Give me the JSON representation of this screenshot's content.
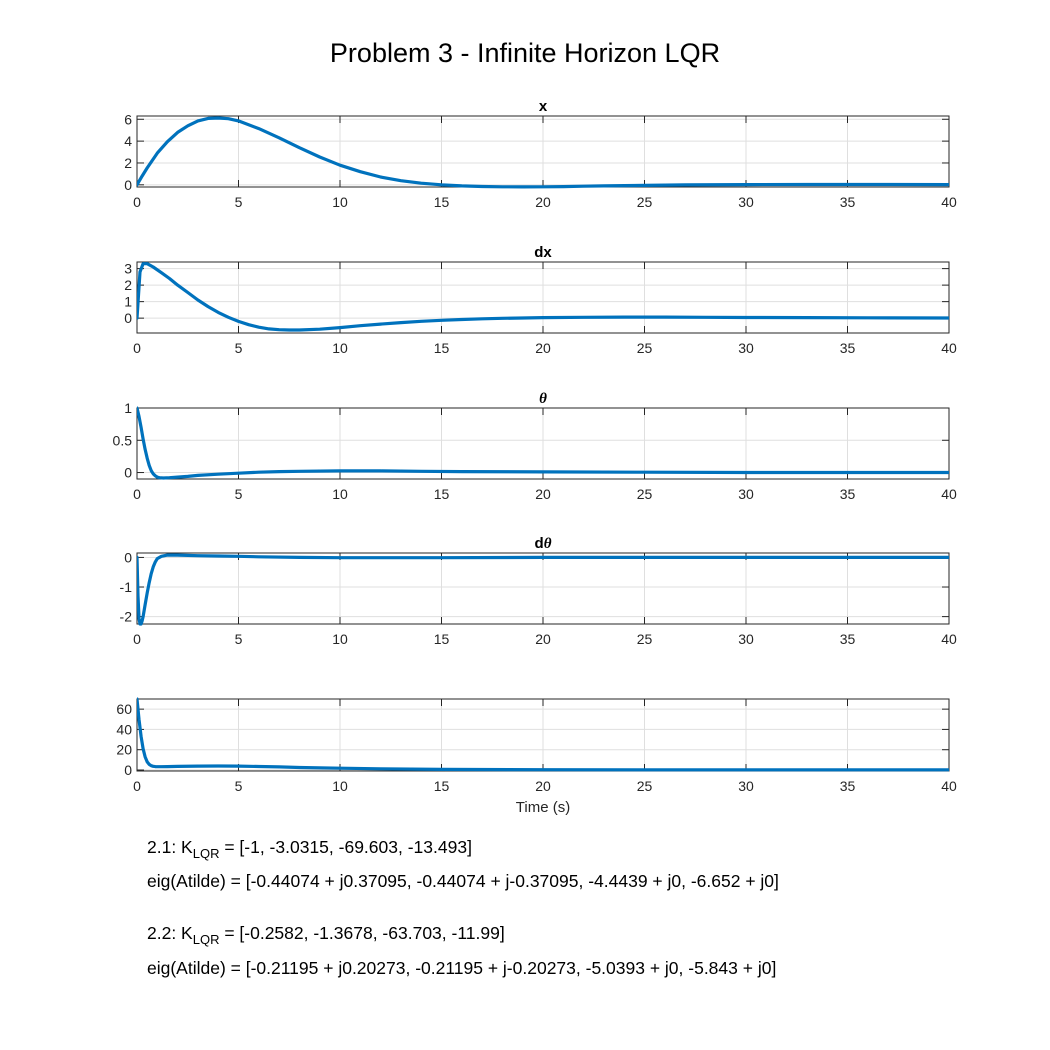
{
  "figure_title": "Problem 3 - Infinite Horizon LQR",
  "chart_data": [
    {
      "type": "line",
      "title": "x",
      "xlim": [
        0,
        40
      ],
      "ylim": [
        -0.2,
        6.3
      ],
      "xticks": [
        0,
        5,
        10,
        15,
        20,
        25,
        30,
        35,
        40
      ],
      "yticks": [
        0,
        2,
        4,
        6
      ],
      "ytick_labels": [
        "0",
        "2",
        "4",
        "6"
      ],
      "grid": true,
      "series": [
        {
          "color": "#0072BD",
          "x": [
            0,
            0.25,
            0.5,
            1,
            1.5,
            2,
            2.5,
            3,
            3.5,
            4,
            4.5,
            5,
            6,
            7,
            8,
            9,
            10,
            11,
            12,
            13,
            14,
            15,
            16,
            17,
            18,
            19,
            20,
            21,
            22,
            23,
            24,
            25,
            27,
            30,
            33,
            36,
            40
          ],
          "y": [
            0,
            0.8,
            1.55,
            2.9,
            3.95,
            4.8,
            5.4,
            5.85,
            6.08,
            6.12,
            6.05,
            5.85,
            5.15,
            4.3,
            3.4,
            2.55,
            1.8,
            1.2,
            0.72,
            0.38,
            0.15,
            0.0,
            -0.1,
            -0.15,
            -0.18,
            -0.19,
            -0.18,
            -0.16,
            -0.13,
            -0.1,
            -0.07,
            -0.05,
            -0.01,
            0.02,
            0.03,
            0.03,
            0.02
          ]
        }
      ]
    },
    {
      "type": "line",
      "title": "dx",
      "xlim": [
        0,
        40
      ],
      "ylim": [
        -0.9,
        3.4
      ],
      "xticks": [
        0,
        5,
        10,
        15,
        20,
        25,
        30,
        35,
        40
      ],
      "yticks": [
        0,
        1,
        2,
        3
      ],
      "ytick_labels": [
        "0",
        "1",
        "2",
        "3"
      ],
      "grid": true,
      "series": [
        {
          "color": "#0072BD",
          "x": [
            0,
            0.15,
            0.3,
            0.5,
            0.8,
            1.2,
            1.6,
            2,
            2.5,
            3,
            3.5,
            4,
            4.5,
            5,
            5.5,
            6,
            6.5,
            7,
            7.5,
            8,
            9,
            10,
            11,
            12,
            13,
            14,
            15,
            16,
            17,
            18,
            19,
            20,
            22,
            24,
            26,
            28,
            30,
            33,
            36,
            40
          ],
          "y": [
            0,
            2.8,
            3.3,
            3.3,
            3.1,
            2.75,
            2.4,
            2.0,
            1.55,
            1.1,
            0.7,
            0.35,
            0.05,
            -0.2,
            -0.4,
            -0.55,
            -0.65,
            -0.7,
            -0.72,
            -0.72,
            -0.67,
            -0.57,
            -0.46,
            -0.36,
            -0.27,
            -0.19,
            -0.13,
            -0.08,
            -0.04,
            -0.01,
            0.01,
            0.03,
            0.05,
            0.06,
            0.06,
            0.05,
            0.04,
            0.03,
            0.02,
            0.01
          ]
        }
      ]
    },
    {
      "type": "line",
      "title": "θ",
      "xlim": [
        0,
        40
      ],
      "ylim": [
        -0.1,
        1.0
      ],
      "xticks": [
        0,
        5,
        10,
        15,
        20,
        25,
        30,
        35,
        40
      ],
      "yticks": [
        0,
        0.5,
        1
      ],
      "ytick_labels": [
        "0",
        "0.5",
        "1"
      ],
      "grid": true,
      "series": [
        {
          "color": "#0072BD",
          "x": [
            0,
            0.1,
            0.2,
            0.3,
            0.4,
            0.5,
            0.6,
            0.7,
            0.8,
            0.9,
            1.0,
            1.1,
            1.3,
            1.6,
            2,
            2.5,
            3,
            4,
            5,
            6,
            7,
            8,
            10,
            12,
            14,
            16,
            20,
            25,
            30,
            35,
            40
          ],
          "y": [
            1.0,
            0.87,
            0.7,
            0.52,
            0.36,
            0.22,
            0.11,
            0.03,
            -0.02,
            -0.05,
            -0.07,
            -0.08,
            -0.085,
            -0.08,
            -0.07,
            -0.06,
            -0.045,
            -0.025,
            -0.01,
            0.005,
            0.015,
            0.02,
            0.025,
            0.025,
            0.02,
            0.015,
            0.01,
            0.005,
            0.0,
            0.0,
            0.0
          ]
        }
      ]
    },
    {
      "type": "line",
      "title": "dθ",
      "xlim": [
        0,
        40
      ],
      "ylim": [
        -2.25,
        0.15
      ],
      "xticks": [
        0,
        5,
        10,
        15,
        20,
        25,
        30,
        35,
        40
      ],
      "yticks": [
        -2,
        -1,
        0
      ],
      "ytick_labels": [
        "-2",
        "-1",
        "0"
      ],
      "grid": true,
      "series": [
        {
          "color": "#0072BD",
          "x": [
            0,
            0.05,
            0.1,
            0.15,
            0.2,
            0.25,
            0.3,
            0.4,
            0.5,
            0.6,
            0.7,
            0.8,
            0.9,
            1.0,
            1.2,
            1.5,
            2,
            3,
            4,
            5,
            6,
            8,
            10,
            15,
            20,
            30,
            40
          ],
          "y": [
            0,
            -1.3,
            -2.05,
            -2.25,
            -2.25,
            -2.15,
            -2.0,
            -1.6,
            -1.2,
            -0.85,
            -0.55,
            -0.32,
            -0.15,
            -0.04,
            0.04,
            0.08,
            0.08,
            0.06,
            0.05,
            0.04,
            0.02,
            0.0,
            -0.01,
            -0.01,
            0.0,
            0.0,
            0.0
          ]
        }
      ]
    },
    {
      "type": "line",
      "title": "",
      "xlim": [
        0,
        40
      ],
      "ylim": [
        -1,
        70
      ],
      "xticks": [
        0,
        5,
        10,
        15,
        20,
        25,
        30,
        35,
        40
      ],
      "yticks": [
        0,
        20,
        40,
        60
      ],
      "ytick_labels": [
        "0",
        "20",
        "40",
        "60"
      ],
      "xlabel": "Time (s)",
      "grid": true,
      "series": [
        {
          "color": "#0072BD",
          "x": [
            0,
            0.1,
            0.2,
            0.3,
            0.4,
            0.5,
            0.6,
            0.7,
            0.8,
            0.9,
            1.0,
            1.2,
            1.5,
            2,
            3,
            4,
            5,
            6,
            7,
            8,
            10,
            12,
            15,
            20,
            25,
            30,
            40
          ],
          "y": [
            70,
            50,
            33,
            21,
            13,
            8,
            5.5,
            4.2,
            3.6,
            3.3,
            3.2,
            3.2,
            3.3,
            3.5,
            3.8,
            3.9,
            3.8,
            3.4,
            3.0,
            2.5,
            1.8,
            1.2,
            0.6,
            0.3,
            0.2,
            0.2,
            0.2
          ]
        }
      ]
    }
  ],
  "annotations": {
    "a21_prefix": "2.1: K",
    "a21_sub": "LQR",
    "a21_value": " = [-1, -3.0315, -69.603, -13.493]",
    "a21_eig": "eig(Atilde) = [-0.44074 + j0.37095, -0.44074 + j-0.37095, -4.4439 + j0, -6.652 + j0]",
    "a22_prefix": "2.2: K",
    "a22_sub": "LQR",
    "a22_value": " = [-0.2582, -1.3678, -63.703, -11.99]",
    "a22_eig": "eig(Atilde) = [-0.21195 + j0.20273, -0.21195 + j-0.20273, -5.0393 + j0, -5.843 + j0]"
  }
}
